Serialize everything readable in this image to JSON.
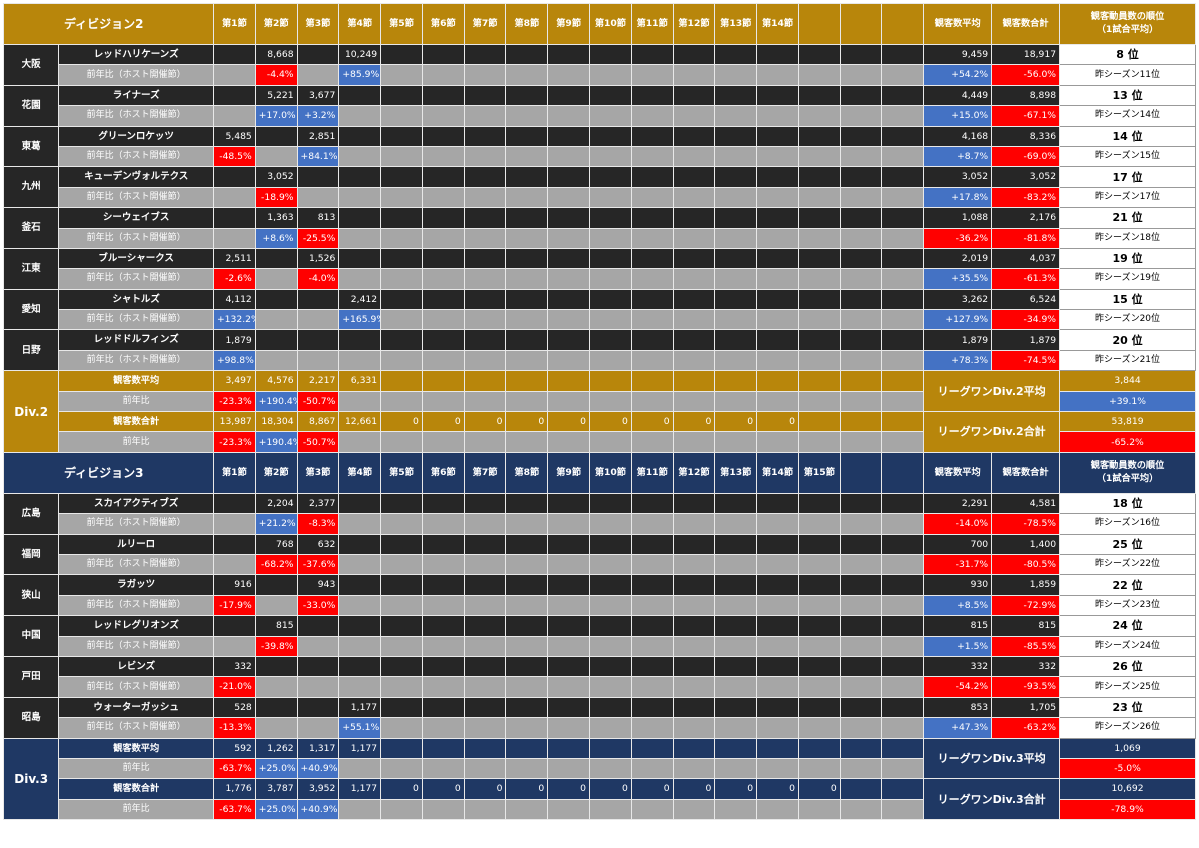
{
  "round_headers_d2": [
    "第1節",
    "第2節",
    "第3節",
    "第4節",
    "第5節",
    "第6節",
    "第7節",
    "第8節",
    "第9節",
    "第10節",
    "第11節",
    "第12節",
    "第13節",
    "第14節",
    "",
    "",
    ""
  ],
  "round_headers_d3": [
    "第1節",
    "第2節",
    "第3節",
    "第4節",
    "第5節",
    "第6節",
    "第7節",
    "第8節",
    "第9節",
    "第10節",
    "第11節",
    "第12節",
    "第13節",
    "第14節",
    "第15節",
    "",
    ""
  ],
  "col_avg": "観客数平均",
  "col_total": "観客数合計",
  "col_rank": "観客動員数の順位\n（1試合平均）",
  "sub_label": "前年比（ホスト開催節）",
  "div2": {
    "title": "ディビジョン2",
    "label": "Div.2",
    "teams": [
      {
        "home": "大阪",
        "club": "レッドハリケーンズ",
        "att": [
          "",
          "8,668",
          "",
          "10,249"
        ],
        "yoy": [
          "",
          "-4.4%",
          "",
          "+85.9%"
        ],
        "avg": "9,459",
        "total": "18,917",
        "avg_yoy": "+54.2%",
        "total_yoy": "-56.0%",
        "rank": "8 位",
        "prev": "昨シーズン11位"
      },
      {
        "home": "花園",
        "club": "ライナーズ",
        "att": [
          "",
          "5,221",
          "3,677",
          ""
        ],
        "yoy": [
          "",
          "+17.0%",
          "+3.2%",
          ""
        ],
        "avg": "4,449",
        "total": "8,898",
        "avg_yoy": "+15.0%",
        "total_yoy": "-67.1%",
        "rank": "13 位",
        "prev": "昨シーズン14位"
      },
      {
        "home": "東葛",
        "club": "グリーンロケッツ",
        "att": [
          "5,485",
          "",
          "2,851",
          ""
        ],
        "yoy": [
          "-48.5%",
          "",
          "+84.1%",
          ""
        ],
        "avg": "4,168",
        "total": "8,336",
        "avg_yoy": "+8.7%",
        "total_yoy": "-69.0%",
        "rank": "14 位",
        "prev": "昨シーズン15位"
      },
      {
        "home": "九州",
        "club": "キューデンヴォルテクス",
        "att": [
          "",
          "3,052",
          "",
          ""
        ],
        "yoy": [
          "",
          "-18.9%",
          "",
          ""
        ],
        "avg": "3,052",
        "total": "3,052",
        "avg_yoy": "+17.8%",
        "total_yoy": "-83.2%",
        "rank": "17 位",
        "prev": "昨シーズン17位"
      },
      {
        "home": "釜石",
        "club": "シーウェイブス",
        "att": [
          "",
          "1,363",
          "813",
          ""
        ],
        "yoy": [
          "",
          "+8.6%",
          "-25.5%",
          ""
        ],
        "avg": "1,088",
        "total": "2,176",
        "avg_yoy": "-36.2%",
        "total_yoy": "-81.8%",
        "rank": "21 位",
        "prev": "昨シーズン18位"
      },
      {
        "home": "江東",
        "club": "ブルーシャークス",
        "att": [
          "2,511",
          "",
          "1,526",
          ""
        ],
        "yoy": [
          "-2.6%",
          "",
          "-4.0%",
          ""
        ],
        "avg": "2,019",
        "total": "4,037",
        "avg_yoy": "+35.5%",
        "total_yoy": "-61.3%",
        "rank": "19 位",
        "prev": "昨シーズン19位"
      },
      {
        "home": "愛知",
        "club": "シャトルズ",
        "att": [
          "4,112",
          "",
          "",
          "2,412"
        ],
        "yoy": [
          "+132.2%",
          "",
          "",
          "+165.9%"
        ],
        "avg": "3,262",
        "total": "6,524",
        "avg_yoy": "+127.9%",
        "total_yoy": "-34.9%",
        "rank": "15 位",
        "prev": "昨シーズン20位"
      },
      {
        "home": "日野",
        "club": "レッドドルフィンズ",
        "att": [
          "1,879",
          "",
          "",
          ""
        ],
        "yoy": [
          "+98.8%",
          "",
          "",
          ""
        ],
        "avg": "1,879",
        "total": "1,879",
        "avg_yoy": "+78.3%",
        "total_yoy": "-74.5%",
        "rank": "20 位",
        "prev": "昨シーズン21位"
      }
    ],
    "summary": {
      "avg_label": "観客数平均",
      "avg": [
        "3,497",
        "4,576",
        "2,217",
        "6,331"
      ],
      "avg_yoy_label": "前年比",
      "avg_yoy": [
        "-23.3%",
        "+190.4%",
        "-50.7%",
        ""
      ],
      "total_label": "観客数合計",
      "total": [
        "13,987",
        "18,304",
        "8,867",
        "12,661",
        "0",
        "0",
        "0",
        "0",
        "0",
        "0",
        "0",
        "0",
        "0",
        "0"
      ],
      "total_yoy_label": "前年比",
      "total_yoy": [
        "-23.3%",
        "+190.4%",
        "-50.7%",
        ""
      ],
      "league_avg_label": "リーグワンDiv.2平均",
      "league_avg": "3,844",
      "league_avg_yoy": "+39.1%",
      "league_total_label": "リーグワンDiv.2合計",
      "league_total": "53,819",
      "league_total_yoy": "-65.2%"
    }
  },
  "div3": {
    "title": "ディビジョン3",
    "label": "Div.3",
    "teams": [
      {
        "home": "広島",
        "club": "スカイアクティブズ",
        "att": [
          "",
          "2,204",
          "2,377",
          ""
        ],
        "yoy": [
          "",
          "+21.2%",
          "-8.3%",
          ""
        ],
        "avg": "2,291",
        "total": "4,581",
        "avg_yoy": "-14.0%",
        "total_yoy": "-78.5%",
        "rank": "18 位",
        "prev": "昨シーズン16位"
      },
      {
        "home": "福岡",
        "club": "ルリーロ",
        "att": [
          "",
          "768",
          "632",
          ""
        ],
        "yoy": [
          "",
          "-68.2%",
          "-37.6%",
          ""
        ],
        "avg": "700",
        "total": "1,400",
        "avg_yoy": "-31.7%",
        "total_yoy": "-80.5%",
        "rank": "25 位",
        "prev": "昨シーズン22位"
      },
      {
        "home": "狭山",
        "club": "ラガッツ",
        "att": [
          "916",
          "",
          "943",
          ""
        ],
        "yoy": [
          "-17.9%",
          "",
          "-33.0%",
          ""
        ],
        "avg": "930",
        "total": "1,859",
        "avg_yoy": "+8.5%",
        "total_yoy": "-72.9%",
        "rank": "22 位",
        "prev": "昨シーズン23位"
      },
      {
        "home": "中国",
        "club": "レッドレグリオンズ",
        "att": [
          "",
          "815",
          "",
          ""
        ],
        "yoy": [
          "",
          "-39.8%",
          "",
          ""
        ],
        "avg": "815",
        "total": "815",
        "avg_yoy": "+1.5%",
        "total_yoy": "-85.5%",
        "rank": "24 位",
        "prev": "昨シーズン24位"
      },
      {
        "home": "戸田",
        "club": "レビンズ",
        "att": [
          "332",
          "",
          "",
          ""
        ],
        "yoy": [
          "-21.0%",
          "",
          "",
          ""
        ],
        "avg": "332",
        "total": "332",
        "avg_yoy": "-54.2%",
        "total_yoy": "-93.5%",
        "rank": "26 位",
        "prev": "昨シーズン25位"
      },
      {
        "home": "昭島",
        "club": "ウォーターガッシュ",
        "att": [
          "528",
          "",
          "",
          "1,177"
        ],
        "yoy": [
          "-13.3%",
          "",
          "",
          "+55.1%"
        ],
        "avg": "853",
        "total": "1,705",
        "avg_yoy": "+47.3%",
        "total_yoy": "-63.2%",
        "rank": "23 位",
        "prev": "昨シーズン26位"
      }
    ],
    "summary": {
      "avg_label": "観客数平均",
      "avg": [
        "592",
        "1,262",
        "1,317",
        "1,177"
      ],
      "avg_yoy_label": "前年比",
      "avg_yoy": [
        "-63.7%",
        "+25.0%",
        "+40.9%",
        ""
      ],
      "total_label": "観客数合計",
      "total": [
        "1,776",
        "3,787",
        "3,952",
        "1,177",
        "0",
        "0",
        "0",
        "0",
        "0",
        "0",
        "0",
        "0",
        "0",
        "0",
        "0"
      ],
      "total_yoy_label": "前年比",
      "total_yoy": [
        "-63.7%",
        "+25.0%",
        "+40.9%",
        ""
      ],
      "league_avg_label": "リーグワンDiv.3平均",
      "league_avg": "1,069",
      "league_avg_yoy": "-5.0%",
      "league_total_label": "リーグワンDiv.3合計",
      "league_total": "10,692",
      "league_total_yoy": "-78.9%"
    }
  },
  "colors": {
    "gold": "#b8860b",
    "navy": "#1f3864",
    "row_dark": "#262626",
    "row_grey": "#a6a6a6",
    "increase": "#4472c4",
    "decrease": "#ff0000"
  }
}
